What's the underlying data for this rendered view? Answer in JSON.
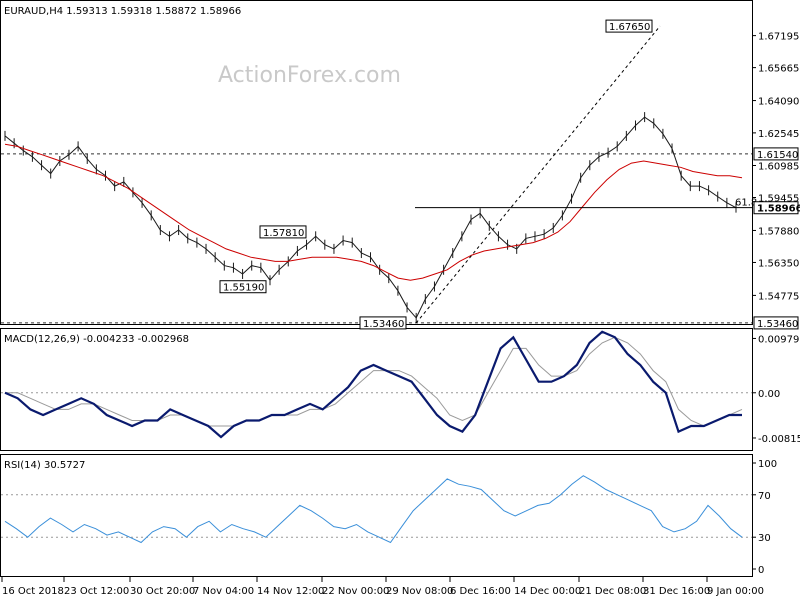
{
  "chart_data": {
    "type": "line",
    "symbol_header": "EURAUD,H4  1.59313 1.59318 1.58872 1.58966",
    "watermark": "ActionForex.com",
    "x_tick_labels": [
      "16 Oct 2018",
      "23 Oct 12:00",
      "30 Oct 20:00",
      "7 Nov 04:00",
      "14 Nov 12:00",
      "22 Nov 00:00",
      "29 Nov 08:00",
      "6 Dec 16:00",
      "14 Dec 00:00",
      "21 Dec 08:00",
      "31 Dec 16:00",
      "9 Jan 00:00"
    ],
    "price": {
      "ylim": [
        1.5336,
        1.6885
      ],
      "y_tick_labels": [
        "1.67195",
        "1.65665",
        "1.64090",
        "1.62545",
        "1.60985",
        "1.59455",
        "1.57880",
        "1.56350",
        "1.54775"
      ],
      "y_tick_values": [
        1.67195,
        1.65665,
        1.6409,
        1.62545,
        1.60985,
        1.59455,
        1.5788,
        1.5635,
        1.54775
      ],
      "price_series": [
        1.624,
        1.6205,
        1.617,
        1.614,
        1.61,
        1.606,
        1.612,
        1.615,
        1.619,
        1.613,
        1.608,
        1.605,
        1.6,
        1.602,
        1.597,
        1.592,
        1.586,
        1.579,
        1.576,
        1.579,
        1.575,
        1.573,
        1.57,
        1.566,
        1.562,
        1.561,
        1.558,
        1.562,
        1.561,
        1.555,
        1.56,
        1.564,
        1.569,
        1.572,
        1.576,
        1.572,
        1.57,
        1.574,
        1.573,
        1.568,
        1.566,
        1.56,
        1.556,
        1.55,
        1.542,
        1.537,
        1.546,
        1.552,
        1.56,
        1.568,
        1.576,
        1.584,
        1.587,
        1.581,
        1.576,
        1.572,
        1.57,
        1.575,
        1.576,
        1.577,
        1.58,
        1.586,
        1.594,
        1.604,
        1.61,
        1.614,
        1.616,
        1.619,
        1.624,
        1.629,
        1.633,
        1.63,
        1.625,
        1.618,
        1.605,
        1.6,
        1.6,
        1.598,
        1.595,
        1.592,
        1.5897
      ],
      "ma_series": [
        1.62,
        1.619,
        1.617,
        1.615,
        1.613,
        1.611,
        1.609,
        1.607,
        1.605,
        1.602,
        1.599,
        1.595,
        1.591,
        1.587,
        1.583,
        1.579,
        1.576,
        1.573,
        1.57,
        1.568,
        1.566,
        1.565,
        1.564,
        1.564,
        1.565,
        1.566,
        1.566,
        1.566,
        1.565,
        1.564,
        1.562,
        1.559,
        1.556,
        1.555,
        1.556,
        1.558,
        1.56,
        1.564,
        1.567,
        1.569,
        1.57,
        1.571,
        1.572,
        1.573,
        1.575,
        1.578,
        1.583,
        1.59,
        1.597,
        1.603,
        1.608,
        1.611,
        1.612,
        1.611,
        1.61,
        1.609,
        1.607,
        1.606,
        1.605,
        1.605,
        1.604
      ],
      "horizontal_levels": [
        {
          "label": "1.61540",
          "value": 1.6154,
          "style": "dashed"
        },
        {
          "label": "1.53460",
          "value": 1.5346,
          "style": "dashed"
        }
      ],
      "callouts": [
        {
          "label": "1.67650",
          "value": 1.6765
        },
        {
          "label": "1.57810",
          "value": 1.5781
        },
        {
          "label": "1.55190",
          "value": 1.5519
        },
        {
          "label": "1.53460",
          "value": 1.5346
        }
      ],
      "last_price_label": "1.58966",
      "last_price_value": 1.58966,
      "fib_label": "61.8",
      "fib_value": 1.5897
    },
    "macd": {
      "header": "MACD(12,26,9) -0.004233 -0.002968",
      "y_tick_labels": [
        "0.009797",
        "0.00",
        "-0.008152"
      ],
      "y_tick_values": [
        0.009797,
        0.0,
        -0.008152
      ],
      "ylim": [
        -0.0105,
        0.0115
      ],
      "macd_series": [
        0.0,
        -0.001,
        -0.003,
        -0.004,
        -0.003,
        -0.002,
        -0.001,
        -0.002,
        -0.004,
        -0.005,
        -0.006,
        -0.005,
        -0.005,
        -0.003,
        -0.004,
        -0.005,
        -0.006,
        -0.008,
        -0.006,
        -0.005,
        -0.005,
        -0.004,
        -0.004,
        -0.003,
        -0.002,
        -0.003,
        -0.001,
        0.001,
        0.004,
        0.005,
        0.004,
        0.003,
        0.002,
        -0.001,
        -0.004,
        -0.006,
        -0.007,
        -0.004,
        0.002,
        0.008,
        0.01,
        0.006,
        0.002,
        0.002,
        0.003,
        0.005,
        0.009,
        0.011,
        0.01,
        0.007,
        0.005,
        0.002,
        0.0,
        -0.007,
        -0.006,
        -0.006,
        -0.005,
        -0.004,
        -0.004
      ],
      "signal_series": [
        0.0,
        0.0,
        -0.001,
        -0.002,
        -0.003,
        -0.003,
        -0.002,
        -0.002,
        -0.003,
        -0.004,
        -0.005,
        -0.005,
        -0.005,
        -0.004,
        -0.004,
        -0.005,
        -0.006,
        -0.006,
        -0.006,
        -0.005,
        -0.005,
        -0.004,
        -0.004,
        -0.004,
        -0.003,
        -0.003,
        -0.002,
        0.0,
        0.002,
        0.004,
        0.004,
        0.004,
        0.003,
        0.001,
        -0.001,
        -0.004,
        -0.005,
        -0.004,
        0.0,
        0.004,
        0.008,
        0.008,
        0.005,
        0.003,
        0.003,
        0.004,
        0.007,
        0.009,
        0.01,
        0.009,
        0.007,
        0.004,
        0.002,
        -0.003,
        -0.005,
        -0.006,
        -0.005,
        -0.004,
        -0.003
      ]
    },
    "rsi": {
      "header": "RSI(14) 30.5727",
      "y_tick_labels": [
        "100",
        "70",
        "30",
        "0"
      ],
      "y_tick_values": [
        100,
        70,
        30,
        0
      ],
      "ylim": [
        0,
        100
      ],
      "rsi_series": [
        45,
        38,
        30,
        40,
        48,
        42,
        35,
        42,
        38,
        32,
        35,
        30,
        25,
        35,
        40,
        38,
        30,
        40,
        45,
        35,
        42,
        38,
        35,
        30,
        40,
        50,
        60,
        55,
        48,
        40,
        38,
        42,
        35,
        30,
        25,
        40,
        55,
        65,
        75,
        85,
        80,
        78,
        75,
        65,
        55,
        50,
        55,
        60,
        62,
        70,
        80,
        88,
        82,
        75,
        70,
        65,
        60,
        55,
        40,
        35,
        38,
        45,
        60,
        50,
        38,
        30
      ]
    }
  }
}
